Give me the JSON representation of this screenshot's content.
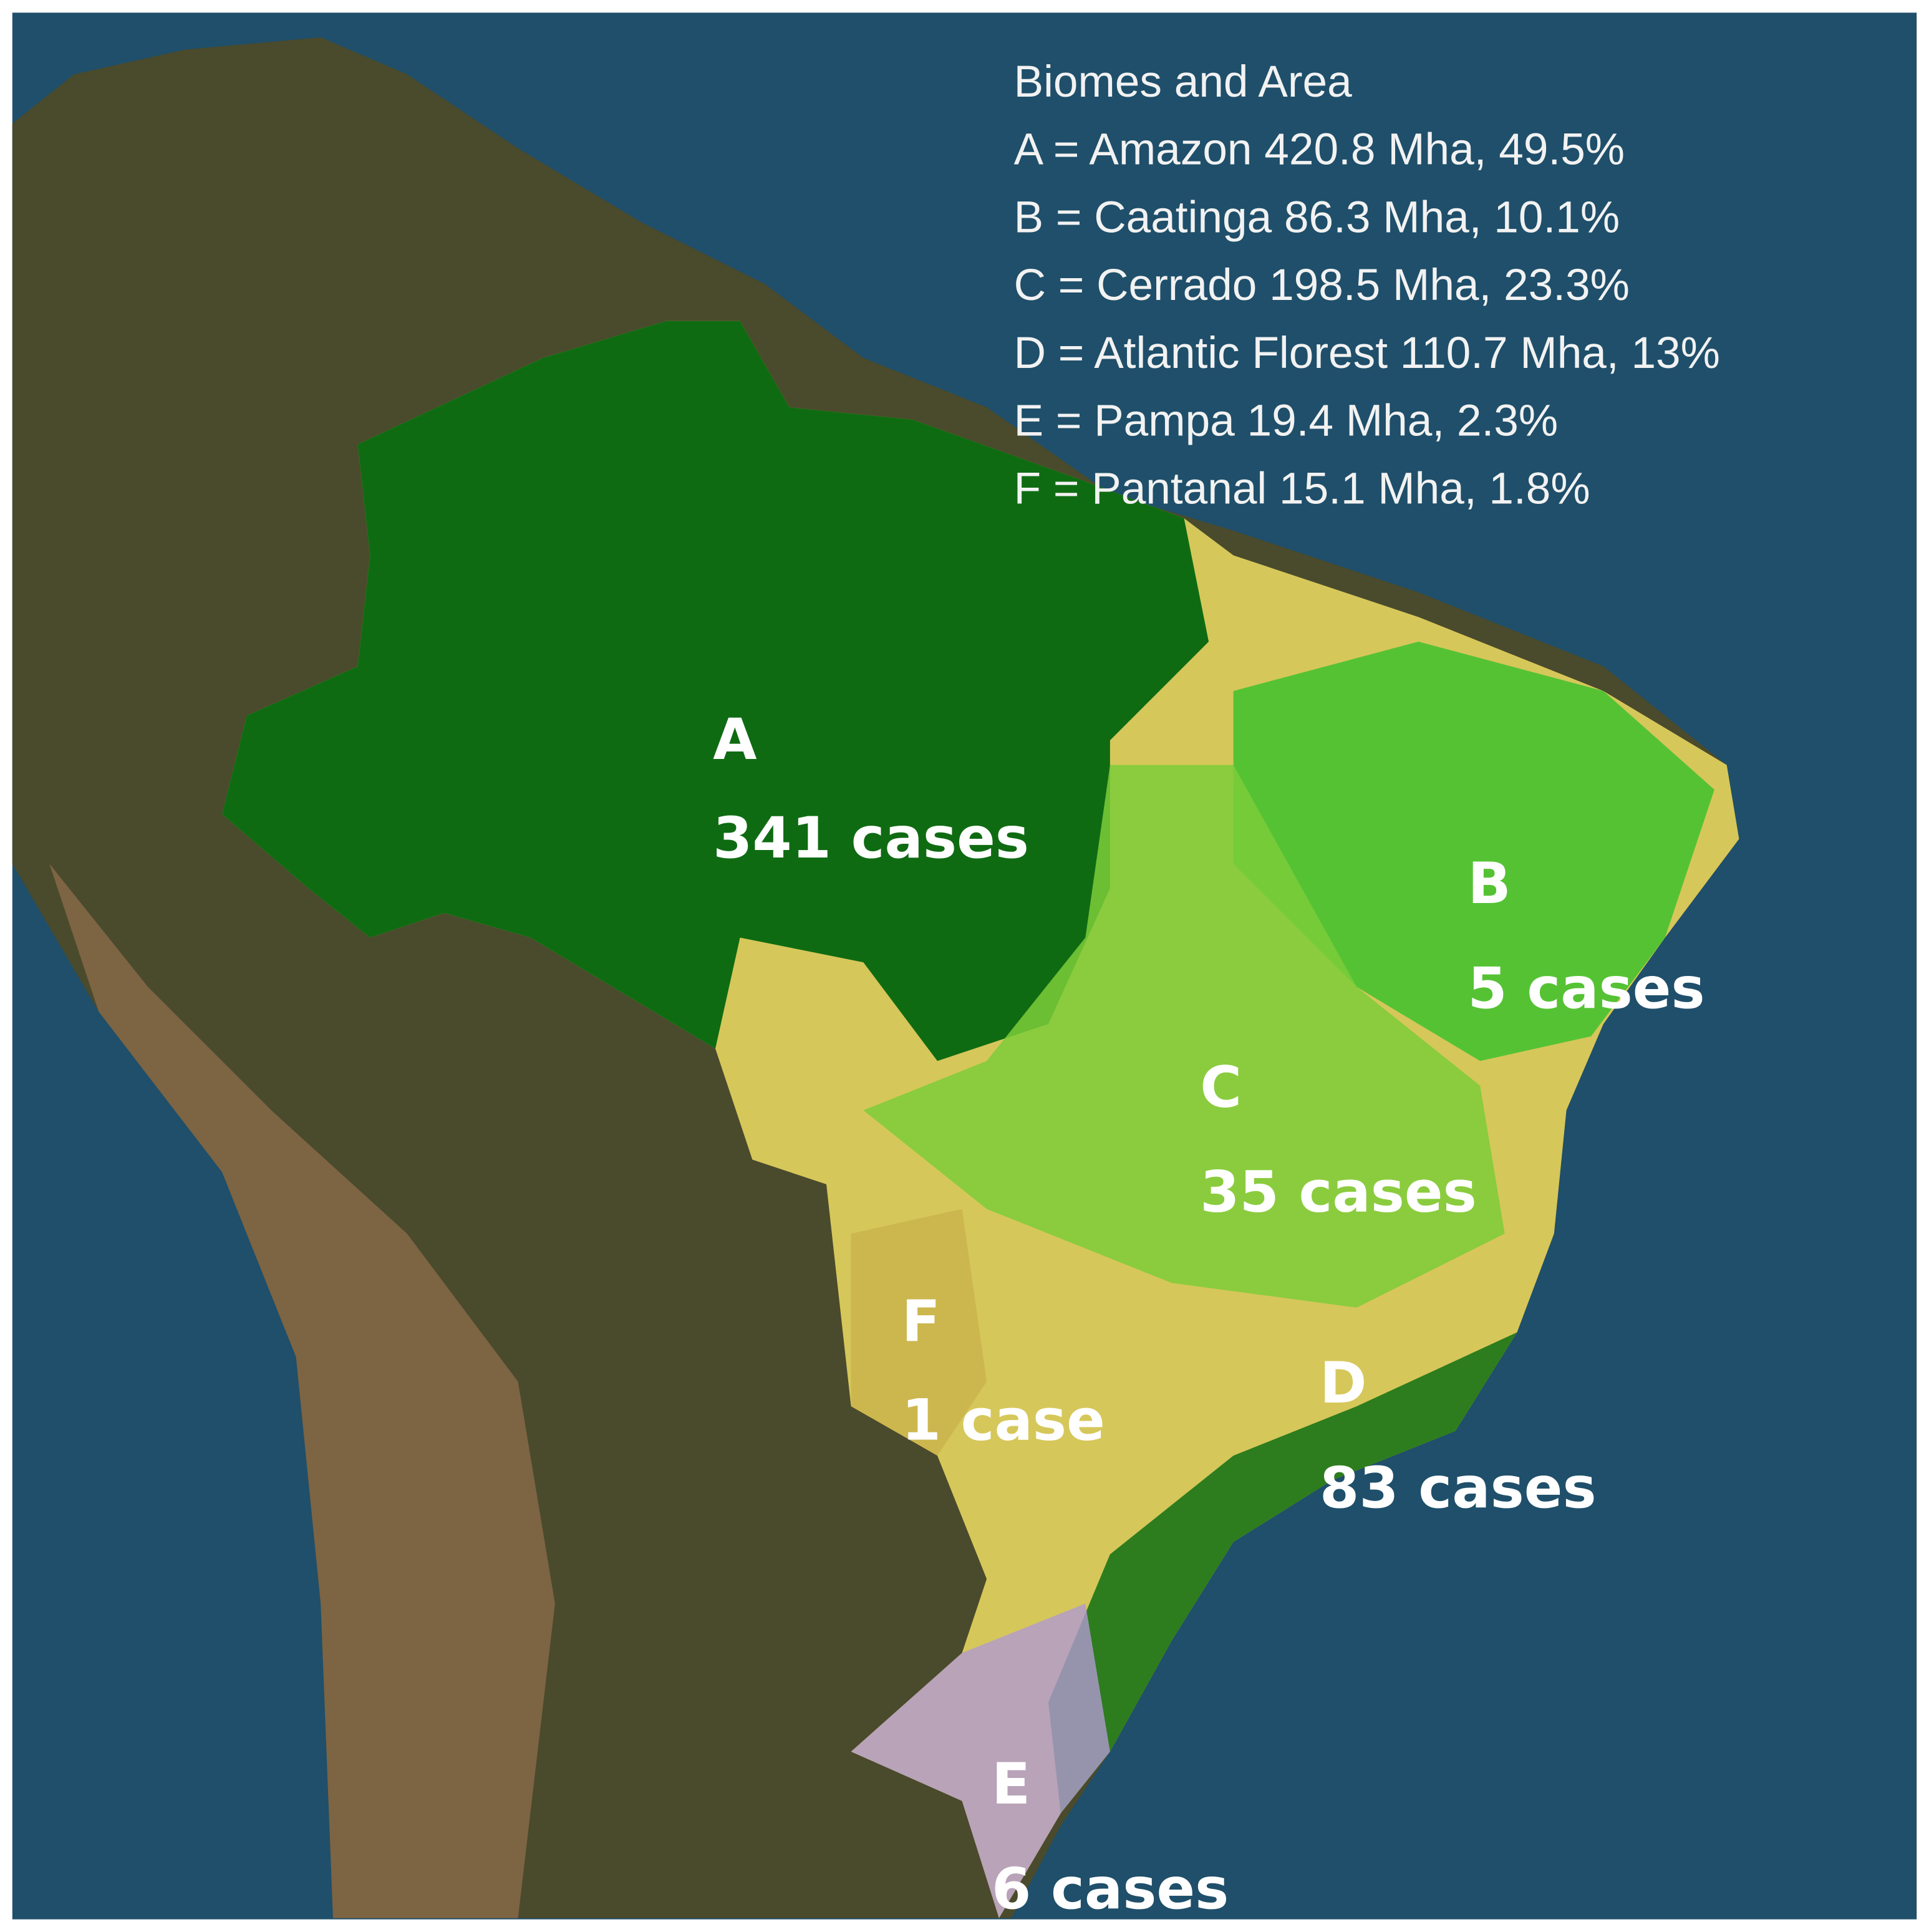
{
  "legend": {
    "title": "Biomes and Area",
    "entries": [
      "A = Amazon  420.8 Mha, 49.5%",
      "B = Caatinga 86.3 Mha, 10.1%",
      "C = Cerrado 198.5 Mha, 23.3%",
      "D = Atlantic Florest 110.7 Mha, 13%",
      "E = Pampa 19.4 Mha, 2.3%",
      "F = Pantanal 15.1 Mha, 1.8%"
    ]
  },
  "regions": [
    {
      "letter": "A",
      "cases": "341 cases"
    },
    {
      "letter": "B",
      "cases": "5 cases"
    },
    {
      "letter": "C",
      "cases": "35 cases"
    },
    {
      "letter": "F",
      "cases": "1 case"
    },
    {
      "letter": "D",
      "cases": "83 cases"
    },
    {
      "letter": "E",
      "cases": "6 cases"
    }
  ]
}
